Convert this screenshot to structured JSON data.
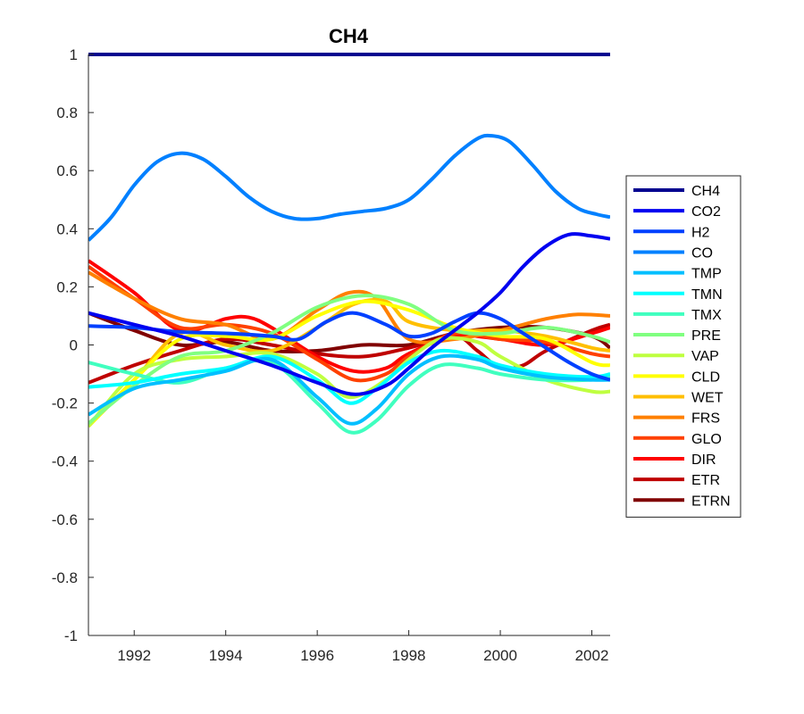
{
  "chart_data": {
    "type": "line",
    "title": "CH4",
    "xlabel": "",
    "ylabel": "",
    "xlim": [
      1991,
      2002.4
    ],
    "ylim": [
      -1,
      1
    ],
    "xticks": [
      1992,
      1994,
      1996,
      1998,
      2000,
      2002
    ],
    "xtick_labels": [
      "1992",
      "1994",
      "1996",
      "1998",
      "2000",
      "2002"
    ],
    "yticks": [
      1,
      0.8,
      0.6,
      0.4,
      0.2,
      0,
      -0.2,
      -0.4,
      -0.6,
      -0.8,
      -1
    ],
    "ytick_labels": [
      "1",
      "0.8",
      "0.6",
      "0.4",
      "0.2",
      "0",
      "-0.2",
      "-0.4",
      "-0.6",
      "-0.8",
      "-1"
    ],
    "grid": false,
    "legend_position": "right-outside",
    "series": [
      {
        "name": "CH4",
        "color": "#00008f",
        "x": [
          1991,
          2002.4
        ],
        "y": [
          1.0,
          1.0
        ]
      },
      {
        "name": "CO2",
        "color": "#0000f0",
        "x": [
          1991,
          1992,
          1993,
          1994,
          1995,
          1996,
          1996.8,
          1997.5,
          1998,
          1998.5,
          1999,
          1999.5,
          2000,
          2000.5,
          2001,
          2001.5,
          2002,
          2002.4
        ],
        "y": [
          0.11,
          0.07,
          0.03,
          -0.02,
          -0.07,
          -0.13,
          -0.17,
          -0.14,
          -0.08,
          -0.01,
          0.05,
          0.11,
          0.18,
          0.27,
          0.34,
          0.38,
          0.375,
          0.365
        ]
      },
      {
        "name": "H2",
        "color": "#0040ff",
        "x": [
          1991,
          1992,
          1993,
          1994,
          1995,
          1995.6,
          1996.2,
          1996.8,
          1997.5,
          1998,
          1998.5,
          1999,
          1999.5,
          2000,
          2000.5,
          2001,
          2001.5,
          2002,
          2002.4
        ],
        "y": [
          0.065,
          0.06,
          0.045,
          0.04,
          0.03,
          0.02,
          0.08,
          0.11,
          0.07,
          0.03,
          0.04,
          0.08,
          0.11,
          0.09,
          0.04,
          -0.01,
          -0.06,
          -0.1,
          -0.12
        ]
      },
      {
        "name": "CO",
        "color": "#0080ff",
        "x": [
          1991,
          1991.5,
          1992,
          1992.5,
          1993,
          1993.5,
          1994,
          1994.5,
          1995,
          1995.5,
          1996,
          1996.5,
          1997,
          1997.5,
          1998,
          1998.5,
          1999,
          1999.5,
          1999.8,
          2000.2,
          2000.7,
          2001.2,
          2001.7,
          2002.1,
          2002.4
        ],
        "y": [
          0.36,
          0.44,
          0.55,
          0.63,
          0.66,
          0.64,
          0.58,
          0.51,
          0.46,
          0.435,
          0.435,
          0.45,
          0.46,
          0.47,
          0.5,
          0.57,
          0.65,
          0.71,
          0.72,
          0.7,
          0.62,
          0.53,
          0.47,
          0.45,
          0.44
        ]
      },
      {
        "name": "TMP",
        "color": "#00bfff",
        "x": [
          1991,
          1992,
          1993,
          1994,
          1995,
          1996,
          1996.7,
          1997.3,
          1998,
          1998.7,
          1999.5,
          2000,
          2001,
          2002,
          2002.4
        ],
        "y": [
          -0.24,
          -0.15,
          -0.12,
          -0.09,
          -0.05,
          -0.18,
          -0.27,
          -0.22,
          -0.1,
          -0.04,
          -0.05,
          -0.08,
          -0.11,
          -0.12,
          -0.12
        ]
      },
      {
        "name": "TMN",
        "color": "#00ffff",
        "x": [
          1991,
          1992,
          1993,
          1994,
          1995,
          1996,
          1996.7,
          1997.3,
          1998,
          1998.7,
          1999.5,
          2000,
          2001,
          2002,
          2002.4
        ],
        "y": [
          -0.145,
          -0.13,
          -0.1,
          -0.08,
          -0.04,
          -0.12,
          -0.2,
          -0.15,
          -0.06,
          -0.02,
          -0.04,
          -0.07,
          -0.1,
          -0.11,
          -0.1
        ]
      },
      {
        "name": "TMX",
        "color": "#40ffbf",
        "x": [
          1991,
          1992,
          1993,
          1994,
          1995,
          1996,
          1996.7,
          1997.3,
          1998,
          1998.7,
          1999.5,
          2000,
          2001,
          2002,
          2002.4
        ],
        "y": [
          -0.06,
          -0.1,
          -0.13,
          -0.08,
          -0.06,
          -0.2,
          -0.3,
          -0.26,
          -0.14,
          -0.07,
          -0.08,
          -0.1,
          -0.12,
          -0.12,
          -0.11
        ]
      },
      {
        "name": "PRE",
        "color": "#80ff80",
        "x": [
          1991,
          1992,
          1993,
          1994,
          1995,
          1996,
          1997,
          1998,
          1999,
          2000,
          2001,
          2002,
          2002.4
        ],
        "y": [
          -0.27,
          -0.14,
          -0.04,
          -0.02,
          0.04,
          0.13,
          0.17,
          0.14,
          0.05,
          0.04,
          0.06,
          0.03,
          0.01
        ]
      },
      {
        "name": "VAP",
        "color": "#bfff40",
        "x": [
          1991,
          1992,
          1993,
          1994,
          1995,
          1996,
          1996.7,
          1997.5,
          1998,
          1998.7,
          1999.5,
          2000,
          2001,
          2002,
          2002.4
        ],
        "y": [
          -0.28,
          -0.1,
          -0.05,
          -0.04,
          -0.03,
          -0.1,
          -0.18,
          -0.12,
          -0.05,
          0.02,
          0.01,
          -0.04,
          -0.12,
          -0.16,
          -0.16
        ]
      },
      {
        "name": "CLD",
        "color": "#ffff00",
        "x": [
          1991,
          1992,
          1993,
          1994,
          1995,
          1996,
          1997,
          1998,
          1999,
          2000,
          2001,
          2002,
          2002.4
        ],
        "y": [
          -0.28,
          -0.12,
          0.02,
          0.03,
          0.02,
          0.1,
          0.15,
          0.12,
          0.06,
          0.03,
          0.02,
          -0.06,
          -0.07
        ]
      },
      {
        "name": "WET",
        "color": "#ffbf00",
        "x": [
          1991,
          1992,
          1993,
          1994,
          1995,
          1996,
          1996.8,
          1997.5,
          1998,
          1999,
          2000,
          2001,
          2002,
          2002.4
        ],
        "y": [
          -0.28,
          -0.12,
          0.04,
          0.0,
          -0.02,
          0.06,
          0.14,
          0.15,
          0.08,
          0.05,
          0.05,
          0.03,
          -0.01,
          -0.02
        ]
      },
      {
        "name": "FRS",
        "color": "#ff8000",
        "x": [
          1991,
          1992,
          1993,
          1994,
          1995,
          1996,
          1996.7,
          1997.3,
          1998,
          1999,
          2000,
          2001,
          2001.7,
          2002.4
        ],
        "y": [
          0.25,
          0.16,
          0.09,
          0.07,
          0.02,
          0.12,
          0.18,
          0.16,
          0.02,
          0.02,
          0.05,
          0.09,
          0.105,
          0.1
        ]
      },
      {
        "name": "GLO",
        "color": "#ff4000",
        "x": [
          1991,
          1992,
          1993,
          1994,
          1995,
          1996,
          1996.8,
          1997.5,
          1998,
          1999,
          2000,
          2001,
          2002,
          2002.4
        ],
        "y": [
          0.27,
          0.16,
          0.06,
          0.07,
          0.04,
          -0.05,
          -0.12,
          -0.1,
          -0.04,
          0.04,
          0.02,
          0.01,
          -0.03,
          -0.04
        ]
      },
      {
        "name": "DIR",
        "color": "#ff0000",
        "x": [
          1991,
          1992,
          1993,
          1994,
          1994.5,
          1995,
          1996,
          1996.8,
          1997.5,
          1998,
          1999,
          2000,
          2001,
          2002,
          2002.4
        ],
        "y": [
          0.29,
          0.18,
          0.05,
          0.09,
          0.095,
          0.06,
          -0.04,
          -0.09,
          -0.08,
          -0.03,
          0.03,
          0.02,
          0.0,
          0.04,
          0.06
        ]
      },
      {
        "name": "ETR",
        "color": "#bf0000",
        "x": [
          1991,
          1992,
          1993,
          1994,
          1995,
          1996,
          1997,
          1998,
          1999,
          1999.5,
          2000,
          2000.5,
          2001,
          2002,
          2002.4
        ],
        "y": [
          -0.13,
          -0.07,
          -0.02,
          0.02,
          0.0,
          -0.03,
          -0.04,
          -0.01,
          0.03,
          -0.02,
          -0.08,
          -0.07,
          -0.02,
          0.05,
          0.07
        ]
      },
      {
        "name": "ETRN",
        "color": "#800000",
        "x": [
          1991,
          1992,
          1993,
          1994,
          1995,
          1996,
          1997,
          1998,
          1999,
          2000,
          2001,
          2002,
          2002.4
        ],
        "y": [
          0.11,
          0.05,
          0.0,
          0.01,
          -0.02,
          -0.02,
          0.0,
          0.0,
          0.04,
          0.06,
          0.06,
          0.03,
          -0.01
        ]
      }
    ]
  }
}
